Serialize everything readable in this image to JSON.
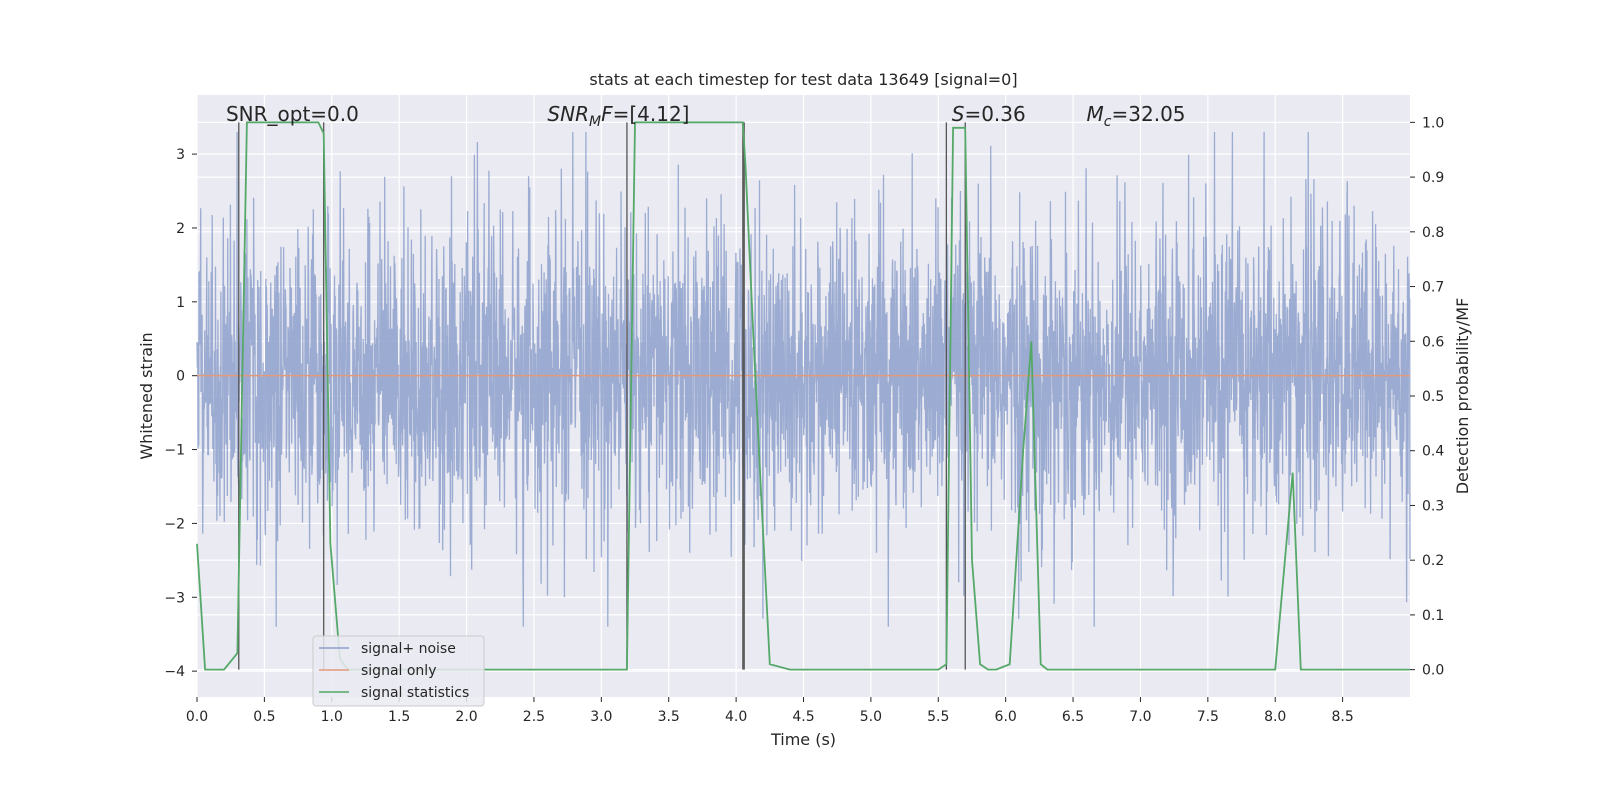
{
  "chart_data": {
    "type": "line",
    "title": "stats at each timestep for test data 13649 [signal=0]",
    "xlabel": "Time (s)",
    "ylabel_left": "Whitened strain",
    "ylabel_right": "Detection probability/MF",
    "xlim": [
      0.0,
      9.0
    ],
    "ylim_left": [
      -4.35,
      3.8
    ],
    "ylim_right": [
      -0.05,
      1.05
    ],
    "xticks": [
      "0.0",
      "0.5",
      "1.0",
      "1.5",
      "2.0",
      "2.5",
      "3.0",
      "3.5",
      "4.0",
      "4.5",
      "5.0",
      "5.5",
      "6.0",
      "6.5",
      "7.0",
      "7.5",
      "8.0",
      "8.5"
    ],
    "xtick_values": [
      0.0,
      0.5,
      1.0,
      1.5,
      2.0,
      2.5,
      3.0,
      3.5,
      4.0,
      4.5,
      5.0,
      5.5,
      6.0,
      6.5,
      7.0,
      7.5,
      8.0,
      8.5
    ],
    "yticks_left": [
      "−4",
      "−3",
      "−2",
      "−1",
      "0",
      "1",
      "2",
      "3"
    ],
    "ytick_values_left": [
      -4,
      -3,
      -2,
      -1,
      0,
      1,
      2,
      3
    ],
    "yticks_right": [
      "0.0",
      "0.1",
      "0.2",
      "0.3",
      "0.4",
      "0.5",
      "0.6",
      "0.7",
      "0.8",
      "0.9",
      "1.0"
    ],
    "ytick_values_right": [
      0.0,
      0.1,
      0.2,
      0.3,
      0.4,
      0.5,
      0.6,
      0.7,
      0.8,
      0.9,
      1.0
    ],
    "grid": true,
    "legend_placement": "lower-left",
    "annotations": [
      {
        "prefix": "SNR_opt=0.0",
        "x": 0.2
      },
      {
        "italic": "SNR",
        "sub": "M",
        "italic2": "F",
        "suffix": "=[4.12]",
        "x": 2.6
      },
      {
        "italic": "S",
        "suffix": "=0.36",
        "x": 5.6
      },
      {
        "italic": "M",
        "sub": "c",
        "suffix": "=32.05",
        "x": 6.6
      }
    ],
    "series": [
      {
        "name": "signal+ noise",
        "color": "#8da0cb",
        "axis": "left",
        "style": "noise",
        "x_range": [
          0.0,
          9.0
        ],
        "typical_amplitude": 1.6,
        "extreme_range": [
          -3.4,
          3.3
        ]
      },
      {
        "name": "signal only",
        "color": "#e29a7b",
        "axis": "left",
        "x": [
          0.0,
          9.0
        ],
        "y": [
          0.0,
          0.0
        ]
      },
      {
        "name": "signal statistics",
        "color": "#55a868",
        "axis": "right",
        "x": [
          0.0,
          0.06,
          0.2,
          0.3,
          0.37,
          0.9,
          0.94,
          0.99,
          1.06,
          1.12,
          1.8,
          3.1,
          3.19,
          3.25,
          3.35,
          4.05,
          4.07,
          4.13,
          4.19,
          4.25,
          4.4,
          5.5,
          5.56,
          5.61,
          5.66,
          5.7,
          5.75,
          5.81,
          5.87,
          5.93,
          6.03,
          6.13,
          6.19,
          6.26,
          6.31,
          7.4,
          8.0,
          8.13,
          8.19,
          8.25,
          9.0
        ],
        "y": [
          0.23,
          0.0,
          0.0,
          0.03,
          1.0,
          1.0,
          0.98,
          0.23,
          0.02,
          0.0,
          0.0,
          0.0,
          0.0,
          1.0,
          1.0,
          1.0,
          0.92,
          0.6,
          0.3,
          0.01,
          0.0,
          0.0,
          0.01,
          0.99,
          0.99,
          0.99,
          0.2,
          0.01,
          0.0,
          0.0,
          0.01,
          0.4,
          0.6,
          0.01,
          0.0,
          0.0,
          0.0,
          0.36,
          0.0,
          0.0,
          0.0
        ]
      }
    ],
    "vertical_markers": [
      0.31,
      0.94,
      3.19,
      4.05,
      4.06,
      5.56,
      5.7
    ]
  }
}
